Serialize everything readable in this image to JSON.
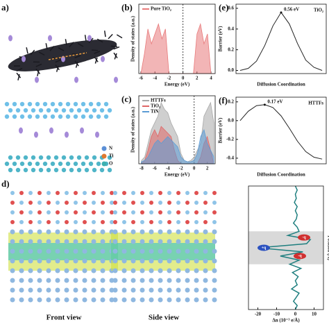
{
  "panels": {
    "a": {
      "label": "a)",
      "electron": "e⁻",
      "legend": [
        "N",
        "Ti",
        "O"
      ]
    },
    "d": {
      "label": "d)",
      "views": [
        "Front view",
        "Side view"
      ]
    }
  },
  "chart_data": [
    {
      "type": "area",
      "panel_label": "(b)",
      "xlabel": "Energy (eV)",
      "ylabel": "Density of states (a.u.)",
      "x": [
        -6,
        -5.5,
        -5,
        -4.5,
        -4,
        -3.5,
        -3,
        -2.5,
        -2,
        -1.5,
        -1,
        -0.5,
        0,
        0.5,
        1,
        1.5,
        2,
        2.5,
        3,
        3.5,
        4,
        4.5
      ],
      "series": [
        {
          "name": "Pure TiO₂",
          "color": "#e8797a",
          "values": [
            0,
            2,
            4.5,
            3,
            4,
            5,
            3.5,
            4.5,
            0,
            0,
            0,
            0,
            0,
            0,
            0,
            0,
            4,
            5,
            3,
            4,
            0,
            0
          ]
        }
      ],
      "xlim": [
        -6.3,
        4.6
      ],
      "xticks": [
        -6,
        -4,
        -2,
        0,
        2,
        4
      ],
      "ylim": [
        0,
        7
      ],
      "fermi_level": 0
    },
    {
      "type": "area",
      "panel_label": "(c)",
      "xlabel": "Energy (eV)",
      "ylabel": "Density of states (a.u.)",
      "x": [
        -8,
        -7.5,
        -7,
        -6.5,
        -6,
        -5.5,
        -5,
        -4.5,
        -4,
        -3.5,
        -3,
        -2.5,
        -2,
        -1.5,
        -1,
        -0.5,
        0,
        0.5,
        1,
        1.5,
        2,
        2.5,
        3
      ],
      "series": [
        {
          "name": "HTTFs",
          "color": "#a8a8a8",
          "values": [
            0.5,
            1,
            3,
            5,
            6,
            7,
            9,
            8,
            7.5,
            6,
            5,
            4,
            1.5,
            0.5,
            0.3,
            0.5,
            1,
            2,
            3,
            7,
            8,
            9,
            6
          ]
        },
        {
          "name": "TiO₂",
          "color": "#e06666",
          "values": [
            0,
            0.5,
            2,
            4,
            5,
            4,
            5.5,
            5,
            4.5,
            4,
            2,
            0.5,
            0,
            0,
            0,
            0,
            0,
            0,
            1,
            3,
            4,
            2,
            0
          ]
        },
        {
          "name": "TiN",
          "color": "#5b9bd5",
          "values": [
            0.3,
            0.5,
            1,
            2,
            3,
            3.5,
            3,
            3.5,
            4,
            3.5,
            3,
            2.5,
            1,
            0.5,
            0.3,
            0.3,
            0.5,
            1.5,
            4,
            5,
            3,
            2,
            1
          ]
        }
      ],
      "xlim": [
        -8.4,
        3.2
      ],
      "xticks": [
        -8,
        -6,
        -4,
        -2,
        0,
        2
      ],
      "ylim": [
        0,
        10
      ],
      "fermi_level": 0
    },
    {
      "type": "line",
      "panel_label": "(e)",
      "xlabel": "Diffusion Coordination",
      "ylabel": "Barrier (eV)",
      "x": [
        0,
        0.1,
        0.2,
        0.3,
        0.4,
        0.5,
        0.6,
        0.7,
        0.8,
        0.9,
        1
      ],
      "series": [
        {
          "name": "TiO₂",
          "color": "#222222",
          "values": [
            0,
            0.02,
            0.09,
            0.24,
            0.43,
            0.56,
            0.45,
            0.26,
            0.1,
            0.03,
            0
          ]
        }
      ],
      "xlim": [
        -0.05,
        1.05
      ],
      "ylim": [
        -0.03,
        0.64
      ],
      "yticks": [
        0.6,
        0.4,
        0.2,
        {
          "value": 0,
          "label": "0.0"
        }
      ],
      "peak_label": "0.56 eV"
    },
    {
      "type": "line",
      "panel_label": "(f)",
      "xlabel": "Diffusion Coordination",
      "ylabel": "Barrier (eV)",
      "x": [
        0,
        0.1,
        0.2,
        0.3,
        0.4,
        0.5,
        0.6,
        0.7,
        0.8,
        0.9,
        1
      ],
      "series": [
        {
          "name": "HTTFs",
          "color": "#222222",
          "values": [
            0,
            0.1,
            0.16,
            0.17,
            0.14,
            0.05,
            -0.08,
            -0.22,
            -0.33,
            -0.39,
            -0.41
          ]
        }
      ],
      "xlim": [
        -0.05,
        1.05
      ],
      "ylim": [
        -0.46,
        0.25
      ],
      "yticks": [
        0.2,
        {
          "value": 0,
          "label": "0.0"
        },
        -0.2,
        -0.4
      ],
      "peak_label": "0.17 eV"
    },
    {
      "type": "profile",
      "xlabel": "Δn (10⁻³ e/Å)",
      "ylabel": "Position (Å)",
      "y": [
        0,
        1,
        2,
        3,
        4,
        5,
        6,
        7,
        8,
        9,
        10,
        11,
        12,
        13,
        14,
        15,
        16,
        17,
        18,
        19,
        20,
        21,
        22,
        23,
        24,
        25,
        26,
        27,
        28,
        29,
        30
      ],
      "series": [
        {
          "color": "#1f7f7f",
          "values": [
            0,
            1,
            -1,
            0.5,
            2,
            -2,
            1,
            0,
            1.5,
            -1.5,
            3,
            -3,
            2,
            -8,
            4,
            -20,
            6,
            8,
            -4,
            2,
            1,
            -1,
            0.5,
            1,
            0,
            1,
            -0.5,
            0.5,
            0,
            1,
            0
          ]
        }
      ],
      "xlim": [
        -25,
        15
      ],
      "xticks": [
        -20,
        -10,
        0,
        10
      ],
      "ylim": [
        0,
        30
      ],
      "band": [
        11,
        19
      ],
      "charge_labels": [
        "+q",
        "-q",
        "-q"
      ]
    }
  ]
}
